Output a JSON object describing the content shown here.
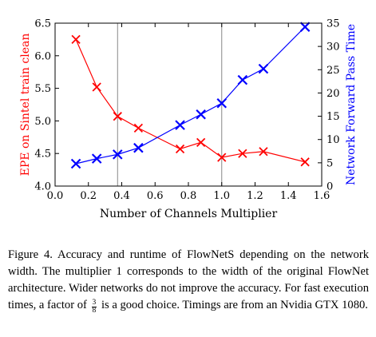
{
  "chart_data": {
    "type": "line",
    "title": "",
    "xlabel": "Number of Channels Multiplier",
    "ylabel_left": "EPE on Sintel train clean",
    "ylabel_right": "Network Forward Pass Time",
    "xlim": [
      0.0,
      1.6
    ],
    "ylim_left": [
      4.0,
      6.5
    ],
    "ylim_right": [
      0,
      35
    ],
    "x_ticks": [
      "0.0",
      "0.2",
      "0.4",
      "0.6",
      "0.8",
      "1.0",
      "1.2",
      "1.4",
      "1.6"
    ],
    "y_left_ticks": [
      "4.0",
      "4.5",
      "5.0",
      "5.5",
      "6.0",
      "6.5"
    ],
    "y_right_ticks": [
      "0",
      "5",
      "10",
      "15",
      "20",
      "25",
      "30",
      "35"
    ],
    "vertical_reference_lines": [
      0.375,
      1.0
    ],
    "grid": false,
    "legend": "none",
    "series": [
      {
        "axis": "left",
        "color": "#ff0000",
        "marker": "x",
        "x": [
          0.125,
          0.25,
          0.375,
          0.5,
          0.75,
          0.875,
          1.0,
          1.125,
          1.25,
          1.5
        ],
        "y": [
          6.25,
          5.52,
          5.07,
          4.89,
          4.57,
          4.67,
          4.44,
          4.5,
          4.53,
          4.37
        ]
      },
      {
        "axis": "right",
        "color": "#0000ff",
        "marker": "x",
        "x": [
          0.125,
          0.25,
          0.375,
          0.5,
          0.75,
          0.875,
          1.0,
          1.125,
          1.25,
          1.5
        ],
        "y": [
          4.8,
          5.9,
          6.8,
          8.2,
          13.1,
          15.4,
          17.8,
          22.8,
          25.2,
          34.2
        ]
      }
    ]
  },
  "caption": {
    "line1": "Figure 4. Accuracy and runtime of FlowNetS depending on the",
    "line2": "network width.  The multiplier 1 corresponds to the width of the",
    "line3": "original FlowNet architecture. Wider networks do not improve the",
    "line4_pre": "accuracy. For fast execution times, a factor of",
    "frac_num": "3",
    "frac_den": "8",
    "line4_post": "is a good choice.",
    "line5": "Timings are from an Nvidia GTX 1080."
  }
}
